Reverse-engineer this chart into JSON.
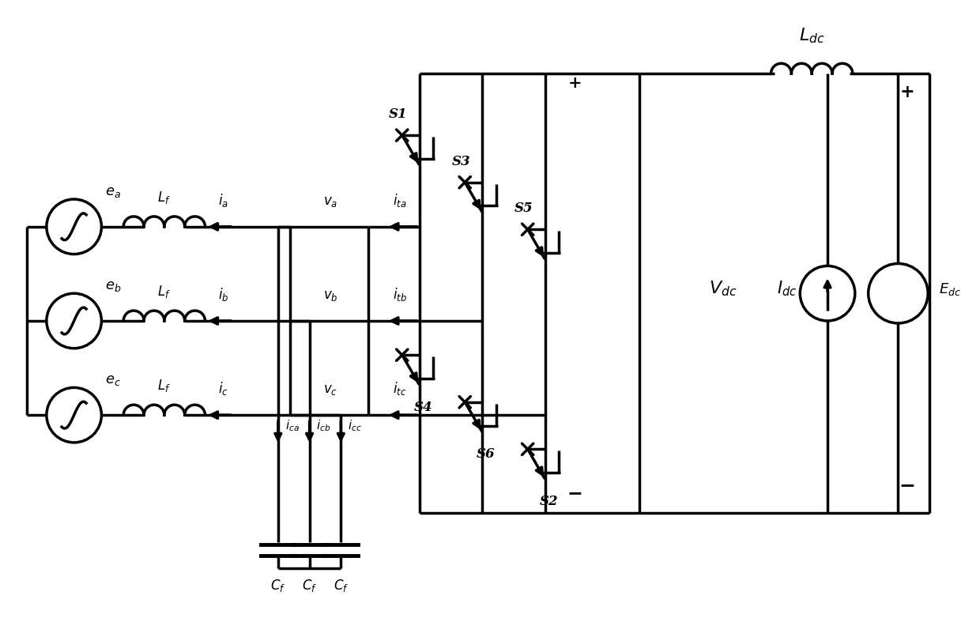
{
  "bg_color": "#ffffff",
  "line_color": "#000000",
  "line_width": 2.5,
  "fig_width": 12.4,
  "fig_height": 8.06,
  "labels": {
    "ea": "$e_a$",
    "eb": "$e_b$",
    "ec": "$e_c$",
    "Lf": "$L_f$",
    "ia": "$i_a$",
    "ib": "$i_b$",
    "ic": "$i_c$",
    "va": "$v_a$",
    "vb": "$v_b$",
    "vc": "$v_c$",
    "ita": "$i_{ta}$",
    "itb": "$i_{tb}$",
    "itc": "$i_{tc}$",
    "ica": "$i_{ca}$",
    "icb": "$i_{cb}$",
    "icc": "$i_{cc}$",
    "Cf1": "$C_f$",
    "Cf2": "$C_f$",
    "Cf3": "$C_f$",
    "S1": "$S1$",
    "S3": "$S3$",
    "S5": "$S5$",
    "S4": "$S4$",
    "S6": "$S6$",
    "S2": "$S2$",
    "Ldc": "$L_{dc}$",
    "Idc": "$I_{dc}$",
    "Vdc": "$V_{dc}$",
    "Edc": "$E_{dc}$",
    "plus_top": "+",
    "minus_bot": "−",
    "plus_right": "+",
    "minus_right": "−"
  }
}
